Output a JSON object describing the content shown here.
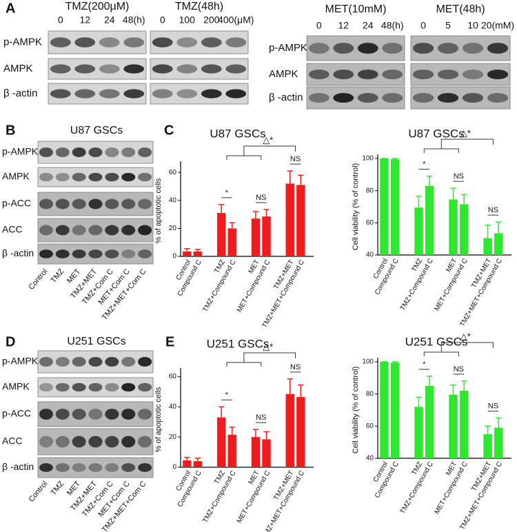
{
  "panel_labels": [
    "A",
    "B",
    "C",
    "D",
    "E"
  ],
  "panel_a": {
    "left": {
      "row_labels": [
        "p-AMPK",
        "AMPK",
        "β -actin"
      ],
      "groups": [
        {
          "header": "TMZ(200μM)",
          "lanes": [
            "0",
            "12",
            "24",
            "48(h)"
          ]
        },
        {
          "header": "TMZ(48h)",
          "lanes": [
            "0",
            "100",
            "200",
            "400(μM)"
          ]
        }
      ]
    },
    "right": {
      "row_labels": [
        "p-AMPK",
        "AMPK",
        "β -actin"
      ],
      "groups": [
        {
          "header": "MET(10mM)",
          "lanes": [
            "0",
            "12",
            "24",
            "48(h)"
          ]
        },
        {
          "header": "MET(48h)",
          "lanes": [
            "0",
            "5",
            "10",
            "20(mM)"
          ]
        }
      ]
    }
  },
  "panel_b": {
    "title": "U87 GSCs",
    "row_labels": [
      "p-AMPK",
      "AMPK",
      "p-ACC",
      "ACC",
      "β -actin"
    ],
    "lanes": [
      "Control",
      "TMZ",
      "MET",
      "TMZ+MET",
      "TMZ+Com C",
      "MET+Com C",
      "TMZ+MET+Com C"
    ]
  },
  "panel_d": {
    "title": "U251 GSCs",
    "row_labels": [
      "p-AMPK",
      "AMPK",
      "p-ACC",
      "ACC",
      "β -actin"
    ],
    "lanes": [
      "Control",
      "TMZ",
      "MET",
      "TMZ+MET",
      "TMZ+Com C",
      "MET+Com C",
      "TMZ+MET+Com C"
    ]
  },
  "chart_data": [
    {
      "type": "bar",
      "title": "U87 GSCs",
      "y_label": "% of apoptotic cells",
      "color": "#ee1c1c",
      "categories": [
        "Control",
        "Compound C",
        "TMZ",
        "TMZ+Compound C",
        "MET",
        "MET+Compound C",
        "TMZ+MET",
        "TMZ+MET+Compound C"
      ],
      "values": [
        3.5,
        3.5,
        31,
        20,
        27,
        28.5,
        52,
        51
      ],
      "errors": [
        2,
        1.5,
        6,
        4,
        5,
        5,
        9,
        7
      ],
      "ylim": [
        0,
        65
      ],
      "yticks": [
        0,
        20,
        40,
        60
      ],
      "annotations": [
        "*",
        "NS",
        "NS",
        "△*"
      ]
    },
    {
      "type": "bar",
      "title": "U87 GSCs",
      "y_label": "Cell viability (% of control)",
      "color": "#2ee82e",
      "categories": [
        "Control",
        "Compound C",
        "TMZ",
        "TMZ+Compound C",
        "MET",
        "MET+Compound C",
        "TMZ+MET",
        "TMZ+MET+Compound C"
      ],
      "values": [
        100,
        99.5,
        69.5,
        83,
        74.5,
        71.5,
        50.5,
        53.5
      ],
      "errors": [
        0,
        0.5,
        7,
        6,
        7,
        6,
        8,
        7
      ],
      "ylim": [
        40,
        100
      ],
      "yticks": [
        40,
        60,
        80,
        100
      ],
      "annotations": [
        "*",
        "NS",
        "NS",
        "△*"
      ]
    },
    {
      "type": "bar",
      "title": "U251 GSCs",
      "y_label": "% of apoptotic cells",
      "color": "#ee1c1c",
      "categories": [
        "Control",
        "Compound C",
        "TMZ",
        "TMZ+Compound C",
        "MET",
        "MET+Compound C",
        "TMZ+MET",
        "TMZ+MET+Compound C"
      ],
      "values": [
        4.5,
        4,
        33,
        21.5,
        20,
        18.5,
        48.5,
        46.5
      ],
      "errors": [
        2,
        2,
        7,
        5,
        5,
        5,
        10,
        8
      ],
      "ylim": [
        0,
        63
      ],
      "yticks": [
        0,
        20,
        40,
        60
      ],
      "annotations": [
        "*",
        "NS",
        "NS",
        "△*"
      ]
    },
    {
      "type": "bar",
      "title": "U251 GSCs",
      "y_label": "Cell viability (% of control)",
      "color": "#2ee82e",
      "categories": [
        "Control",
        "Compound C",
        "TMZ",
        "TMZ+Compound C",
        "MET",
        "MET+Compound C",
        "TMZ+MET",
        "TMZ+MET+Compound C"
      ],
      "values": [
        100,
        99.5,
        72,
        85,
        79.5,
        82,
        55,
        59
      ],
      "errors": [
        0,
        0.5,
        6,
        6,
        6,
        6,
        5,
        6
      ],
      "ylim": [
        40,
        100
      ],
      "yticks": [
        40,
        60,
        80,
        100
      ],
      "annotations": [
        "*",
        "NS",
        "NS",
        "△*"
      ]
    }
  ]
}
